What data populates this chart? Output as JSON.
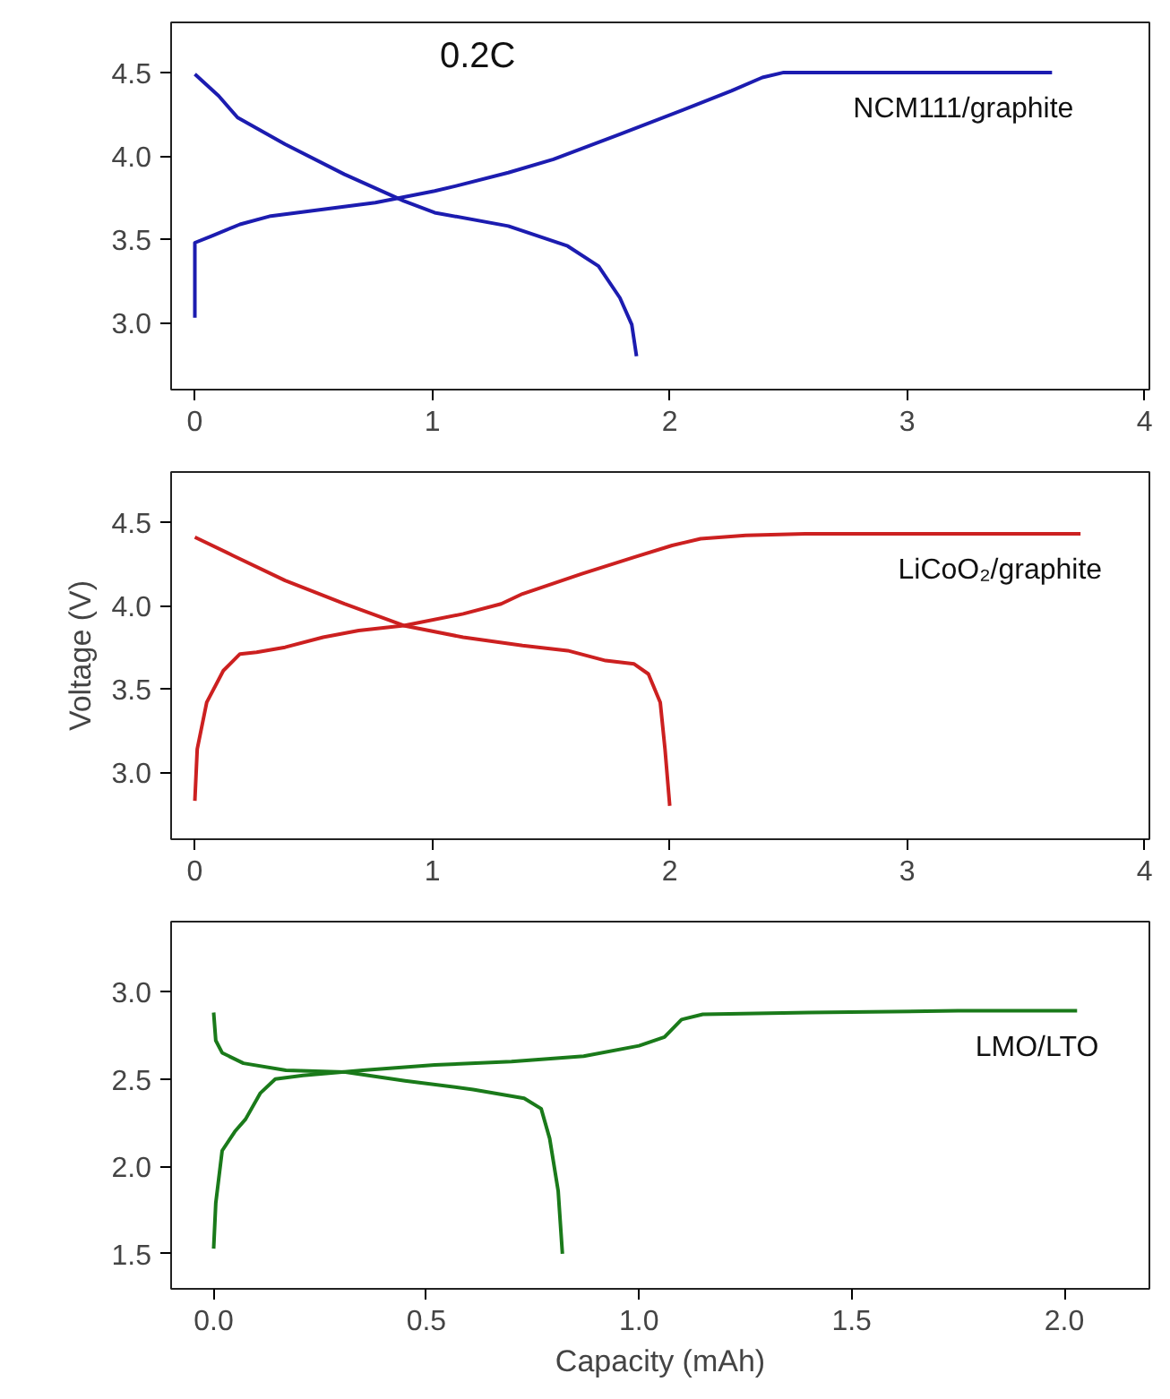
{
  "chart_data": [
    {
      "type": "line",
      "xlim": [
        -0.1,
        4.02
      ],
      "ylim": [
        2.6,
        4.8
      ],
      "xticks": [
        0,
        1,
        2,
        3,
        4
      ],
      "yticks": [
        {
          "value": 3,
          "label": "3.0"
        },
        3.5,
        {
          "value": 4,
          "label": "4.0"
        },
        4.5
      ],
      "grid": false,
      "annotations": [
        "0.2C"
      ],
      "series": [
        {
          "name": "NCM111/graphite",
          "color": "#1c1cb0",
          "x": [
            0.0,
            0.0,
            0.07,
            0.19,
            0.32,
            0.54,
            0.76,
            1.01,
            1.1,
            1.32,
            1.51,
            1.79,
            2.1,
            2.26,
            2.39,
            2.48,
            3.61
          ],
          "values": [
            3.03,
            3.48,
            3.52,
            3.59,
            3.64,
            3.68,
            3.72,
            3.79,
            3.82,
            3.9,
            3.98,
            4.13,
            4.3,
            4.39,
            4.47,
            4.5,
            4.5
          ]
        },
        {
          "color": "#1c1cb0",
          "x": [
            0.0,
            0.1,
            0.18,
            0.38,
            0.63,
            0.88,
            1.01,
            1.32,
            1.57,
            1.7,
            1.79,
            1.84,
            1.86
          ],
          "values": [
            4.49,
            4.36,
            4.23,
            4.07,
            3.89,
            3.73,
            3.66,
            3.58,
            3.46,
            3.34,
            3.15,
            2.99,
            2.8
          ]
        }
      ]
    },
    {
      "type": "line",
      "xlim": [
        -0.1,
        4.02
      ],
      "ylim": [
        2.6,
        4.8
      ],
      "xticks": [
        0,
        1,
        2,
        3,
        4
      ],
      "yticks": [
        {
          "value": 3,
          "label": "3.0"
        },
        3.5,
        {
          "value": 4,
          "label": "4.0"
        },
        4.5
      ],
      "ylabel": "Voltage (V)",
      "grid": false,
      "series": [
        {
          "name": "LiCoO₂/graphite",
          "color": "#cc2020",
          "x": [
            0.0,
            0.01,
            0.05,
            0.12,
            0.19,
            0.26,
            0.38,
            0.54,
            0.69,
            0.88,
            1.13,
            1.29,
            1.38,
            1.63,
            1.85,
            2.01,
            2.13,
            2.32,
            2.57,
            3.73
          ],
          "values": [
            2.83,
            3.14,
            3.42,
            3.61,
            3.71,
            3.72,
            3.75,
            3.81,
            3.85,
            3.88,
            3.95,
            4.01,
            4.07,
            4.19,
            4.29,
            4.36,
            4.4,
            4.42,
            4.43,
            4.43
          ]
        },
        {
          "color": "#cc2020",
          "x": [
            0.0,
            0.16,
            0.38,
            0.63,
            0.88,
            1.13,
            1.38,
            1.57,
            1.73,
            1.85,
            1.91,
            1.96,
            1.98,
            2.0
          ],
          "values": [
            4.41,
            4.3,
            4.15,
            4.01,
            3.88,
            3.81,
            3.76,
            3.73,
            3.67,
            3.65,
            3.59,
            3.42,
            3.14,
            2.8
          ]
        }
      ]
    },
    {
      "type": "line",
      "xlim": [
        -0.1,
        2.2
      ],
      "ylim": [
        1.3,
        3.4
      ],
      "xticks": [
        {
          "value": 0,
          "label": "0.0"
        },
        0.5,
        {
          "value": 1,
          "label": "1.0"
        },
        1.5,
        {
          "value": 2,
          "label": "2.0"
        }
      ],
      "yticks": [
        1.5,
        {
          "value": 2,
          "label": "2.0"
        },
        2.5,
        {
          "value": 3,
          "label": "3.0"
        }
      ],
      "xlabel": "Capacity (mAh)",
      "grid": false,
      "series": [
        {
          "name": "LMO/LTO",
          "color": "#1a7a1a",
          "x": [
            0.0,
            0.005,
            0.02,
            0.05,
            0.075,
            0.11,
            0.145,
            0.21,
            0.35,
            0.52,
            0.7,
            0.87,
            1.0,
            1.06,
            1.1,
            1.15,
            1.4,
            1.75,
            2.03
          ],
          "values": [
            1.53,
            1.79,
            2.09,
            2.2,
            2.27,
            2.42,
            2.5,
            2.52,
            2.55,
            2.58,
            2.6,
            2.63,
            2.69,
            2.74,
            2.84,
            2.87,
            2.88,
            2.89,
            2.89
          ]
        },
        {
          "color": "#1a7a1a",
          "x": [
            0.0,
            0.005,
            0.02,
            0.07,
            0.17,
            0.31,
            0.45,
            0.61,
            0.73,
            0.77,
            0.79,
            0.81,
            0.82
          ],
          "values": [
            2.88,
            2.72,
            2.65,
            2.59,
            2.55,
            2.54,
            2.49,
            2.44,
            2.39,
            2.33,
            2.16,
            1.86,
            1.5
          ]
        }
      ]
    }
  ]
}
